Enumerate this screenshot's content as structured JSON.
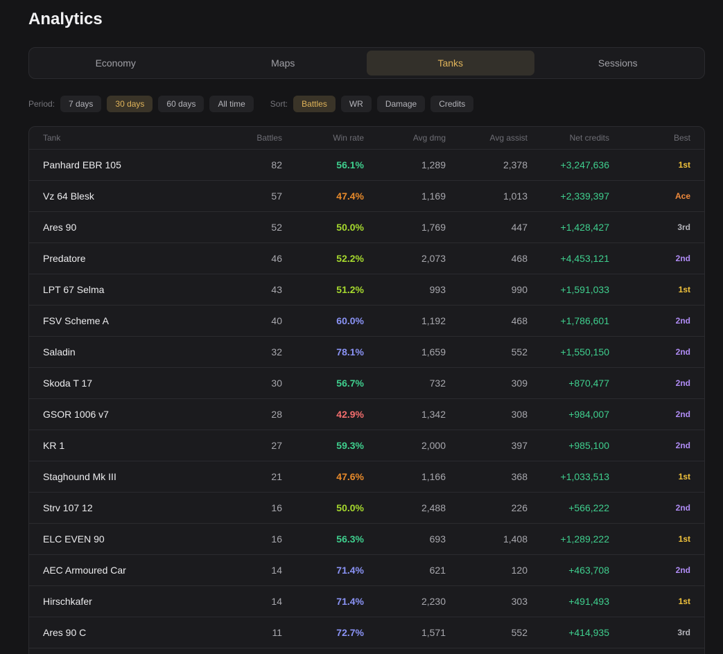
{
  "header": {
    "title": "Analytics"
  },
  "tabs": [
    {
      "label": "Economy",
      "active": false
    },
    {
      "label": "Maps",
      "active": false
    },
    {
      "label": "Tanks",
      "active": true
    },
    {
      "label": "Sessions",
      "active": false
    }
  ],
  "filters": {
    "period_label": "Period:",
    "periods": [
      {
        "label": "7 days",
        "active": false
      },
      {
        "label": "30 days",
        "active": true
      },
      {
        "label": "60 days",
        "active": false
      },
      {
        "label": "All time",
        "active": false
      }
    ],
    "sort_label": "Sort:",
    "sorts": [
      {
        "label": "Battles",
        "active": true
      },
      {
        "label": "WR",
        "active": false
      },
      {
        "label": "Damage",
        "active": false
      },
      {
        "label": "Credits",
        "active": false
      }
    ]
  },
  "colors": {
    "accent": "#e0b45a",
    "credits": "#3fcf8e",
    "wr_red": "#f26d6d",
    "wr_orange": "#e88a2a",
    "wr_yellowgreen": "#a6d92e",
    "wr_green": "#3fcf8e",
    "wr_blue": "#8a93f5",
    "best_gold": "#f0c23c",
    "best_orange": "#f08a3c",
    "best_silver": "#b4b4ba",
    "best_purple": "#b08cf5"
  },
  "table": {
    "columns": [
      "Tank",
      "Battles",
      "Win rate",
      "Avg dmg",
      "Avg assist",
      "Net credits",
      "Best"
    ],
    "rows": [
      {
        "tank": "Panhard EBR 105",
        "battles": "82",
        "wr": "56.1%",
        "wr_color": "#3fcf8e",
        "dmg": "1,289",
        "assist": "2,378",
        "credits": "+3,247,636",
        "best": "1st",
        "best_color": "#f0c23c"
      },
      {
        "tank": "Vz 64 Blesk",
        "battles": "57",
        "wr": "47.4%",
        "wr_color": "#e88a2a",
        "dmg": "1,169",
        "assist": "1,013",
        "credits": "+2,339,397",
        "best": "Ace",
        "best_color": "#f08a3c"
      },
      {
        "tank": "Ares 90",
        "battles": "52",
        "wr": "50.0%",
        "wr_color": "#a6d92e",
        "dmg": "1,769",
        "assist": "447",
        "credits": "+1,428,427",
        "best": "3rd",
        "best_color": "#b4b4ba"
      },
      {
        "tank": "Predatore",
        "battles": "46",
        "wr": "52.2%",
        "wr_color": "#a6d92e",
        "dmg": "2,073",
        "assist": "468",
        "credits": "+4,453,121",
        "best": "2nd",
        "best_color": "#b08cf5"
      },
      {
        "tank": "LPT 67 Selma",
        "battles": "43",
        "wr": "51.2%",
        "wr_color": "#a6d92e",
        "dmg": "993",
        "assist": "990",
        "credits": "+1,591,033",
        "best": "1st",
        "best_color": "#f0c23c"
      },
      {
        "tank": "FSV Scheme A",
        "battles": "40",
        "wr": "60.0%",
        "wr_color": "#8a93f5",
        "dmg": "1,192",
        "assist": "468",
        "credits": "+1,786,601",
        "best": "2nd",
        "best_color": "#b08cf5"
      },
      {
        "tank": "Saladin",
        "battles": "32",
        "wr": "78.1%",
        "wr_color": "#8a93f5",
        "dmg": "1,659",
        "assist": "552",
        "credits": "+1,550,150",
        "best": "2nd",
        "best_color": "#b08cf5"
      },
      {
        "tank": "Skoda T 17",
        "battles": "30",
        "wr": "56.7%",
        "wr_color": "#3fcf8e",
        "dmg": "732",
        "assist": "309",
        "credits": "+870,477",
        "best": "2nd",
        "best_color": "#b08cf5"
      },
      {
        "tank": "GSOR 1006 v7",
        "battles": "28",
        "wr": "42.9%",
        "wr_color": "#f26d6d",
        "dmg": "1,342",
        "assist": "308",
        "credits": "+984,007",
        "best": "2nd",
        "best_color": "#b08cf5"
      },
      {
        "tank": "KR 1",
        "battles": "27",
        "wr": "59.3%",
        "wr_color": "#3fcf8e",
        "dmg": "2,000",
        "assist": "397",
        "credits": "+985,100",
        "best": "2nd",
        "best_color": "#b08cf5"
      },
      {
        "tank": "Staghound Mk III",
        "battles": "21",
        "wr": "47.6%",
        "wr_color": "#e88a2a",
        "dmg": "1,166",
        "assist": "368",
        "credits": "+1,033,513",
        "best": "1st",
        "best_color": "#f0c23c"
      },
      {
        "tank": "Strv 107 12",
        "battles": "16",
        "wr": "50.0%",
        "wr_color": "#a6d92e",
        "dmg": "2,488",
        "assist": "226",
        "credits": "+566,222",
        "best": "2nd",
        "best_color": "#b08cf5"
      },
      {
        "tank": "ELC EVEN 90",
        "battles": "16",
        "wr": "56.3%",
        "wr_color": "#3fcf8e",
        "dmg": "693",
        "assist": "1,408",
        "credits": "+1,289,222",
        "best": "1st",
        "best_color": "#f0c23c"
      },
      {
        "tank": "AEC Armoured Car",
        "battles": "14",
        "wr": "71.4%",
        "wr_color": "#8a93f5",
        "dmg": "621",
        "assist": "120",
        "credits": "+463,708",
        "best": "2nd",
        "best_color": "#b08cf5"
      },
      {
        "tank": "Hirschkafer",
        "battles": "14",
        "wr": "71.4%",
        "wr_color": "#8a93f5",
        "dmg": "2,230",
        "assist": "303",
        "credits": "+491,493",
        "best": "1st",
        "best_color": "#f0c23c"
      },
      {
        "tank": "Ares 90 C",
        "battles": "11",
        "wr": "72.7%",
        "wr_color": "#8a93f5",
        "dmg": "1,571",
        "assist": "552",
        "credits": "+414,935",
        "best": "3rd",
        "best_color": "#b4b4ba"
      }
    ]
  }
}
